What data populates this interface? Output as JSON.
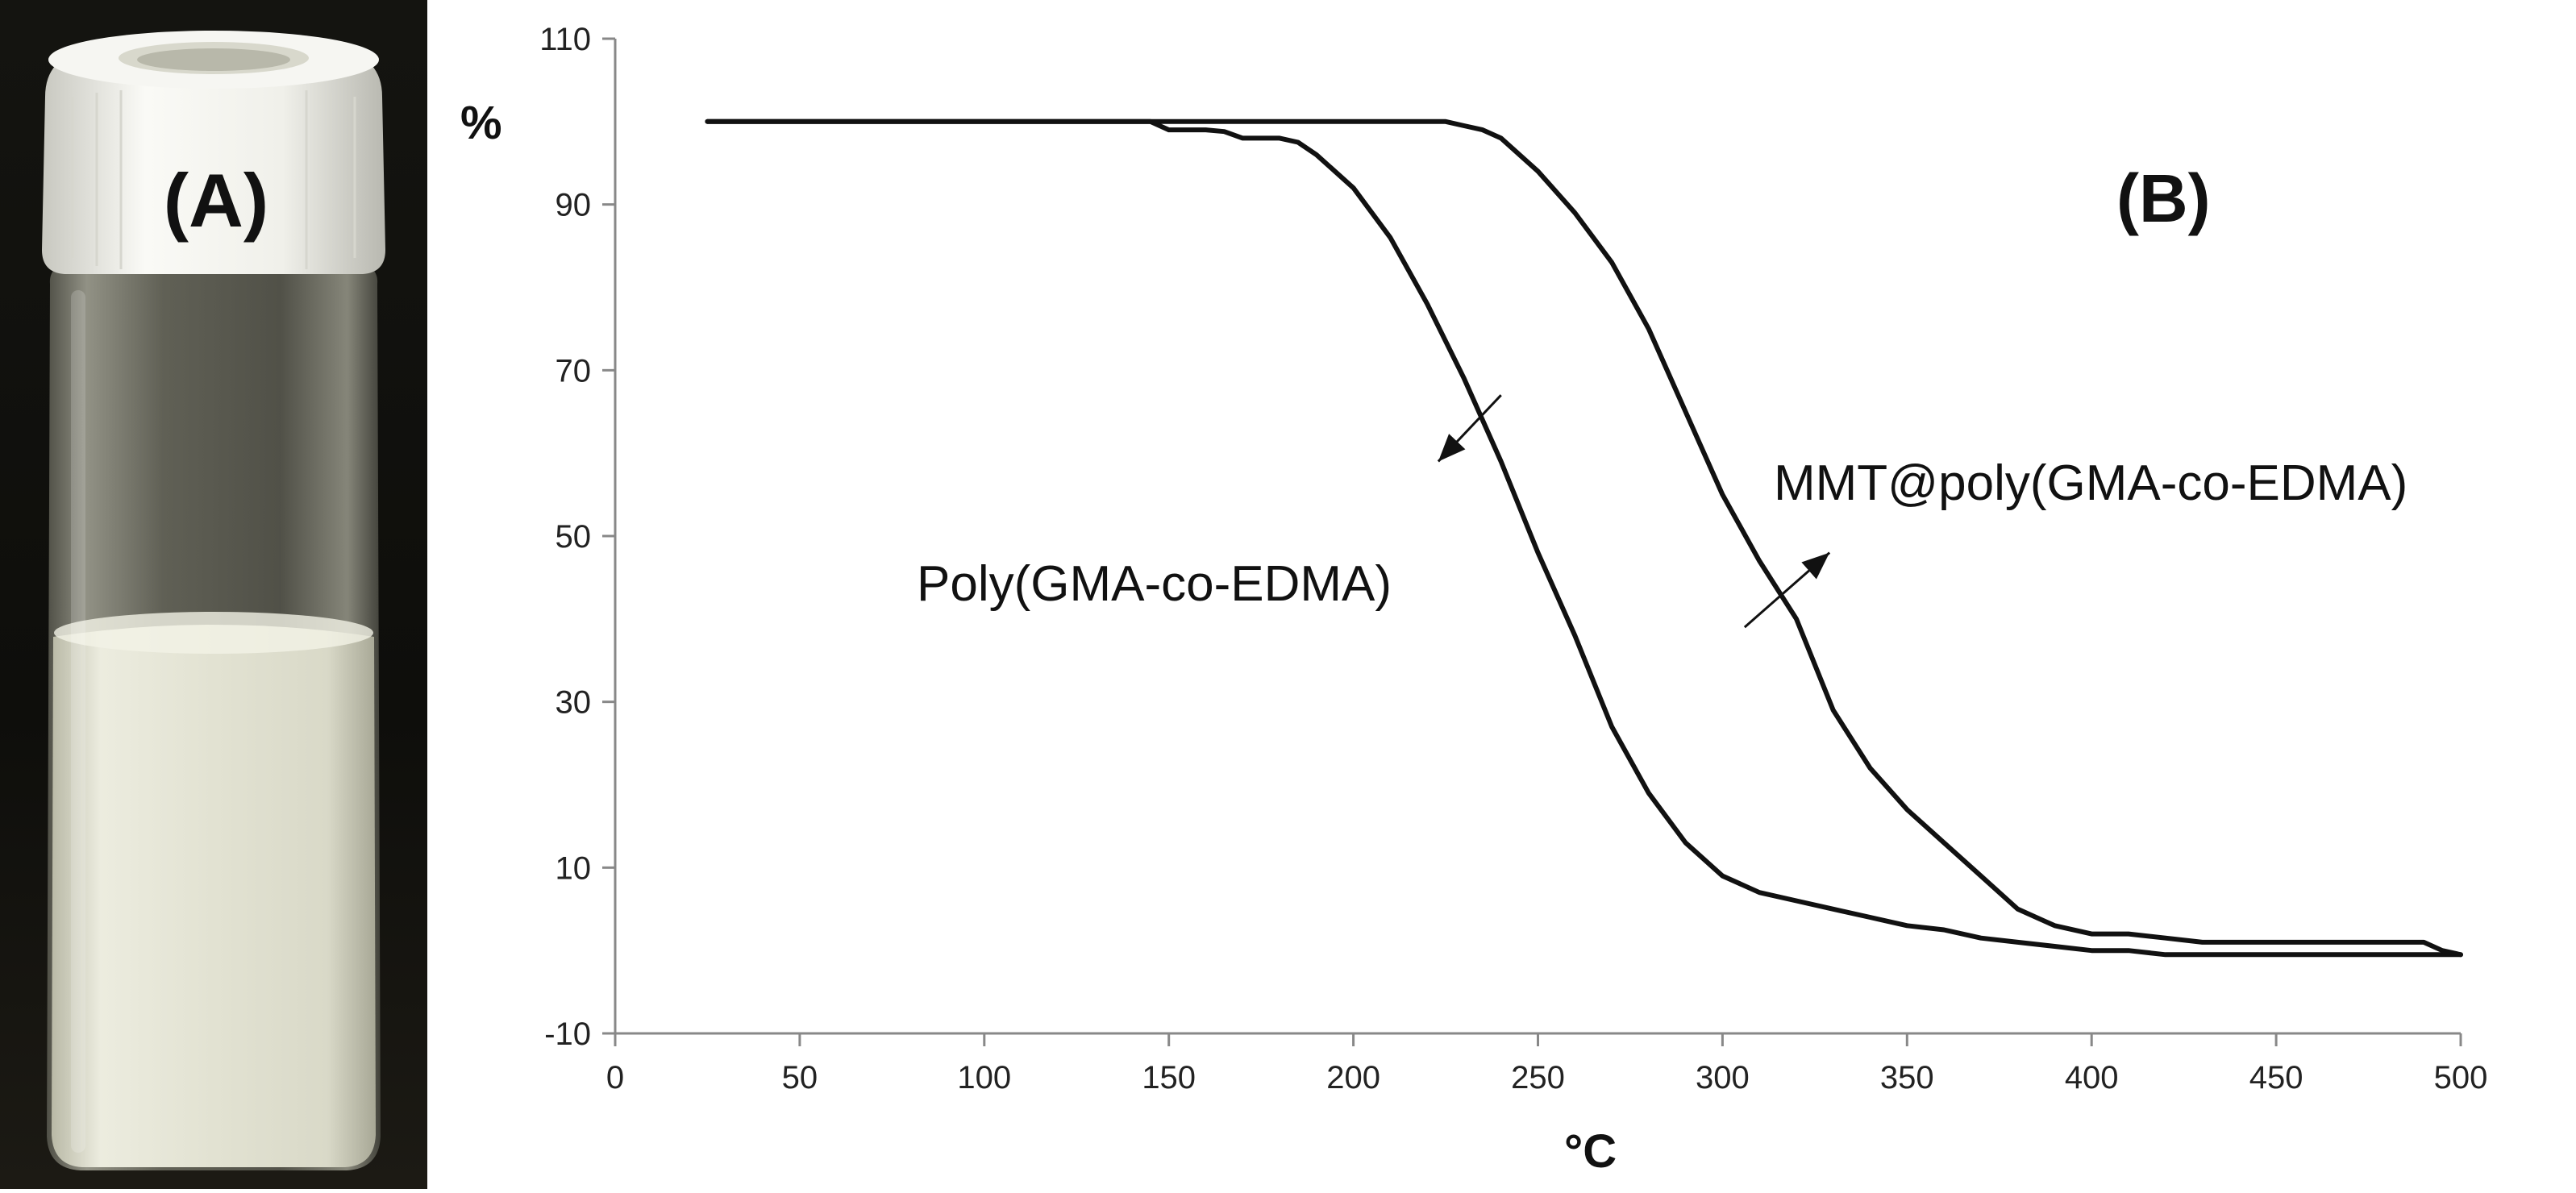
{
  "panels": {
    "a_label": "(A)",
    "b_label": "(B)"
  },
  "colors": {
    "line": "#111111",
    "axis": "#888888",
    "liquid": "#e6e6d6",
    "cap": "#f4f4f0",
    "photo_bg": "#0d0d0a"
  },
  "chart_data": {
    "type": "line",
    "title": "",
    "xlabel": "°C",
    "ylabel": "%",
    "xlim": [
      0,
      500
    ],
    "ylim": [
      -10,
      110
    ],
    "x_ticks": [
      0,
      50,
      100,
      150,
      200,
      250,
      300,
      350,
      400,
      450,
      500
    ],
    "y_ticks": [
      -10,
      10,
      30,
      50,
      70,
      90,
      110
    ],
    "grid": false,
    "series": [
      {
        "name": "Poly(GMA-co-EDMA)",
        "x": [
          25,
          145,
          150,
          160,
          165,
          170,
          180,
          185,
          190,
          200,
          210,
          220,
          230,
          240,
          250,
          260,
          270,
          280,
          290,
          300,
          310,
          320,
          330,
          340,
          350,
          360,
          370,
          380,
          390,
          400,
          410,
          420,
          500
        ],
        "y": [
          100,
          100,
          99,
          99,
          98.8,
          98,
          98,
          97.5,
          96,
          92,
          86,
          78,
          69,
          59,
          48,
          38,
          27,
          19,
          13,
          9,
          7,
          6,
          5,
          4,
          3,
          2.5,
          1.5,
          1,
          0.5,
          0,
          0,
          -0.5,
          -0.5
        ]
      },
      {
        "name": "MMT@poly(GMA-co-EDMA)",
        "x": [
          25,
          225,
          230,
          235,
          240,
          250,
          260,
          270,
          280,
          290,
          300,
          310,
          320,
          330,
          340,
          350,
          360,
          370,
          380,
          390,
          400,
          410,
          420,
          430,
          440,
          450,
          490,
          495,
          500
        ],
        "y": [
          100,
          100,
          99.5,
          99,
          98,
          94,
          89,
          83,
          75,
          65,
          55,
          47,
          40,
          29,
          22,
          17,
          13,
          9,
          5,
          3,
          2,
          2,
          1.5,
          1,
          1,
          1,
          1,
          0,
          -0.5
        ]
      }
    ],
    "annotations": [
      {
        "text": "Poly(GMA-co-EDMA)",
        "arrow_from": [
          240,
          67
        ],
        "arrow_to": [
          223,
          59
        ]
      },
      {
        "text": "MMT@poly(GMA-co-EDMA)",
        "arrow_from": [
          306,
          39
        ],
        "arrow_to": [
          329,
          48
        ]
      }
    ]
  }
}
